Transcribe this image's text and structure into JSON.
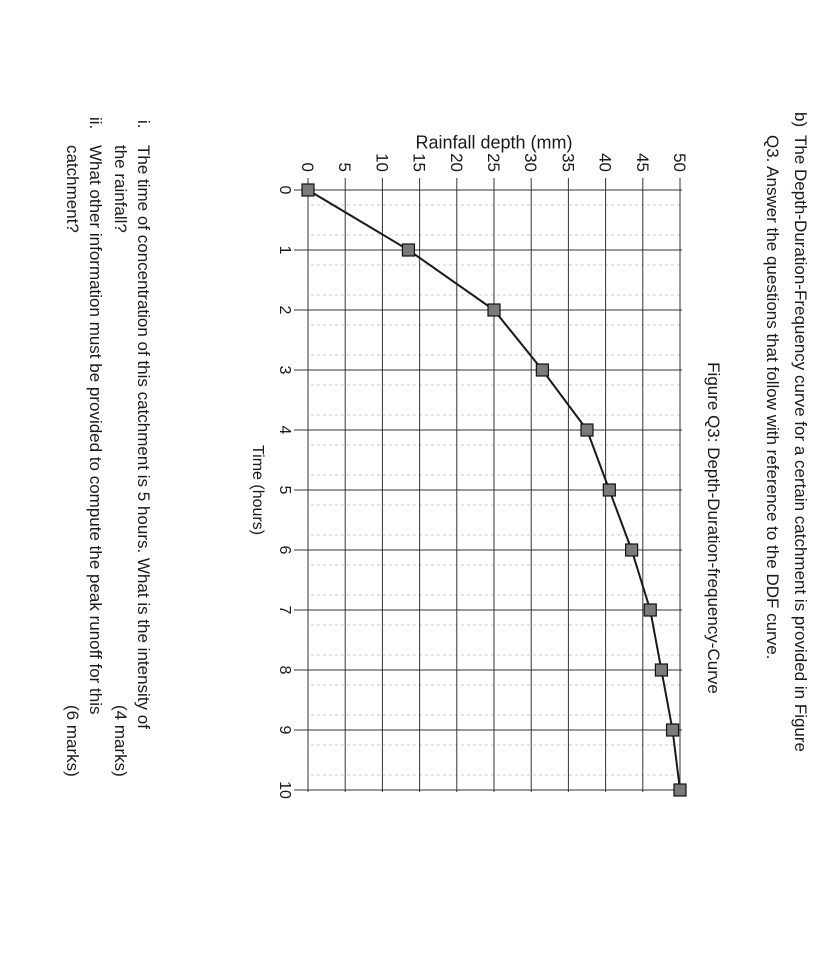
{
  "question": {
    "label": "b)",
    "line1": "The Depth-Duration-Frequency curve for a certain catchment is provided in Figure",
    "line2": "Q3. Answer the questions that follow with reference to the DDF curve."
  },
  "subquestions": [
    {
      "num": "i.",
      "line1": "The time of concentration of this catchment is 5 hours.  What is the intensity of",
      "line2": "the rainfall?",
      "marks": "(4 marks)"
    },
    {
      "num": "ii.",
      "line1": "What other information must be provided to compute the peak runoff for this",
      "line2": "catchment?",
      "marks": "(6 marks)"
    }
  ],
  "chart_data": {
    "type": "line",
    "title": "Figure Q3: Depth-Duration-frequency-Curve",
    "xlabel": "Time (hours)",
    "ylabel": "Rainfall depth (mm)",
    "xlim": [
      0,
      10
    ],
    "ylim": [
      0,
      50
    ],
    "x_ticks": [
      "0",
      "1",
      "2",
      "3",
      "4",
      "5",
      "6",
      "7",
      "8",
      "9",
      "10"
    ],
    "y_ticks": [
      "0",
      "5",
      "10",
      "15",
      "20",
      "25",
      "30",
      "35",
      "40",
      "45",
      "50"
    ],
    "grid": true,
    "marker": "square",
    "colors": {
      "line": "#1a1a1a",
      "marker": "#7a7a7a",
      "grid": "#333333"
    },
    "x": [
      0,
      1,
      2,
      3,
      4,
      5,
      6,
      7,
      8,
      9,
      10
    ],
    "y": [
      0,
      13.5,
      25,
      31.5,
      37.5,
      40.5,
      43.5,
      46,
      47.5,
      49,
      50
    ]
  }
}
